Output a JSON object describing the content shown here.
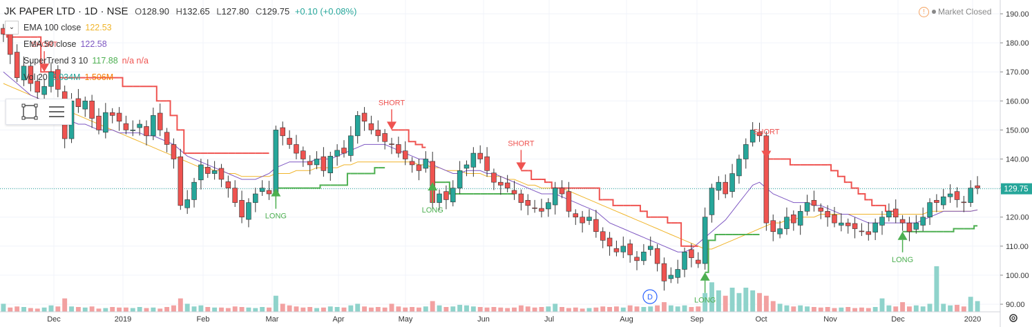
{
  "header": {
    "symbol": "JK PAPER LTD · 1D · NSE",
    "open_label": "O",
    "open": "128.90",
    "high_label": "H",
    "high": "132.65",
    "low_label": "L",
    "low": "127.80",
    "close_label": "C",
    "close": "129.75",
    "change": "+0.10 (+0.08%)"
  },
  "indicators": [
    {
      "label": "EMA 100 close",
      "value": "122.53",
      "color": "#f0b429"
    },
    {
      "label": "EMA 50 close",
      "value": "122.58",
      "color": "#7e57c2"
    },
    {
      "label": "SuperTrend 3 10",
      "value": "117.88",
      "extra": "n/a n/a",
      "color": "#4caf50",
      "extra_color": "#ef5350"
    },
    {
      "label": "Vol 20",
      "value": "2.034M",
      "value2": "1.506M",
      "color": "#26a69a",
      "color2": "#f57c00"
    }
  ],
  "market_status": "Market Closed",
  "icons": {
    "collapse": "chevron-down-icon",
    "rect": "rectangle-tool-icon",
    "lines": "list-icon",
    "warn": "warning-icon",
    "settings": "gear-icon",
    "dividend": "dividend-marker-icon"
  },
  "colors": {
    "up": "#26a69a",
    "down": "#ef5350",
    "vol_up": "#8fd3cb",
    "vol_down": "#f2a1a1",
    "ema100": "#f0b429",
    "ema50": "#7e57c2",
    "st_up": "#4caf50",
    "st_down": "#ef5350",
    "last_price_bg": "#26a69a"
  },
  "chart_data": {
    "type": "candlestick",
    "ylim": [
      90,
      190
    ],
    "y_ticks": [
      "190.00",
      "180.00",
      "170.00",
      "160.00",
      "150.00",
      "140.00",
      "130.00",
      "120.00",
      "110.00",
      "100.00",
      "90.00"
    ],
    "x_ticks": [
      "Dec",
      "2019",
      "Feb",
      "Mar",
      "Apr",
      "May",
      "Jun",
      "Jul",
      "Aug",
      "Sep",
      "Oct",
      "Nov",
      "Dec",
      "2020"
    ],
    "last_price": "129.75",
    "dividend_marker": "D",
    "close": [
      183,
      176,
      168,
      172,
      166,
      163,
      165,
      170,
      164,
      147,
      160,
      158,
      160,
      154,
      150,
      156,
      155,
      153,
      150,
      150,
      152,
      148,
      155,
      150,
      145,
      140,
      124,
      126,
      132,
      138,
      135,
      136,
      133,
      130,
      125,
      120,
      125,
      128,
      130,
      128,
      150,
      148,
      145,
      142,
      140,
      138,
      140,
      136,
      141,
      143,
      142,
      148,
      155,
      153,
      150,
      148,
      146,
      145,
      142,
      140,
      138,
      136,
      140,
      125,
      128,
      126,
      130,
      136,
      138,
      142,
      140,
      136,
      132,
      131,
      130,
      128,
      125,
      124,
      123,
      122,
      125,
      130,
      128,
      122,
      120,
      118,
      120,
      115,
      112,
      110,
      108,
      110,
      107,
      105,
      108,
      110,
      104,
      98,
      100,
      102,
      108,
      106,
      104,
      120,
      130,
      132,
      128,
      135,
      140,
      145,
      150,
      148,
      118,
      115,
      116,
      120,
      118,
      122,
      125,
      124,
      122,
      120,
      118,
      118,
      117,
      116,
      115,
      114,
      118,
      120,
      122,
      120,
      118,
      115,
      118,
      120,
      125,
      125,
      127,
      128,
      126,
      125,
      130,
      130
    ],
    "open_prev_offset": true,
    "ema100": [
      166,
      165,
      164,
      163,
      162,
      161,
      160,
      159,
      158,
      157,
      156,
      155,
      154,
      153,
      152,
      151,
      150,
      149,
      148,
      147,
      146,
      145,
      144,
      143,
      142,
      141,
      140,
      139,
      138,
      137,
      137,
      136,
      136,
      135,
      135,
      134,
      134,
      134,
      134,
      134,
      135,
      135,
      135,
      136,
      136,
      136,
      137,
      137,
      137,
      137,
      138,
      138,
      139,
      139,
      139,
      139,
      139,
      139,
      139,
      139,
      139,
      138,
      138,
      137,
      137,
      136,
      136,
      136,
      135,
      135,
      135,
      134,
      134,
      134,
      133,
      133,
      132,
      131,
      131,
      130,
      130,
      130,
      130,
      129,
      128,
      127,
      126,
      125,
      124,
      123,
      122,
      121,
      120,
      119,
      118,
      117,
      116,
      115,
      114,
      113,
      112,
      111,
      110,
      109,
      109,
      110,
      111,
      112,
      113,
      114,
      115,
      116,
      117,
      118,
      118,
      119,
      119,
      120,
      120,
      120,
      121,
      121,
      121,
      121,
      121,
      121,
      121,
      121,
      121,
      121,
      121,
      121,
      121,
      121,
      121,
      121,
      122,
      122,
      122,
      122,
      122,
      122,
      122,
      122.5
    ],
    "ema50": [
      170,
      168,
      166,
      164,
      162,
      161,
      160,
      158,
      156,
      154,
      153,
      152,
      152,
      151,
      150,
      150,
      150,
      149,
      149,
      149,
      149,
      148,
      148,
      147,
      146,
      145,
      143,
      141,
      140,
      139,
      138,
      137,
      136,
      135,
      134,
      133,
      133,
      133,
      134,
      135,
      137,
      138,
      139,
      139,
      139,
      139,
      140,
      140,
      140,
      141,
      142,
      143,
      144,
      145,
      145,
      145,
      145,
      144,
      143,
      142,
      141,
      140,
      140,
      138,
      137,
      136,
      135,
      135,
      136,
      136,
      136,
      135,
      135,
      134,
      133,
      132,
      131,
      130,
      129,
      128,
      128,
      128,
      127,
      126,
      125,
      124,
      123,
      122,
      120,
      118,
      117,
      116,
      115,
      114,
      113,
      112,
      111,
      110,
      109,
      108,
      108,
      109,
      111,
      113,
      115,
      117,
      119,
      122,
      125,
      128,
      131,
      132,
      130,
      128,
      127,
      126,
      125,
      125,
      125,
      124,
      124,
      123,
      122,
      121,
      121,
      120,
      119,
      118,
      118,
      118,
      118,
      118,
      118,
      118,
      118,
      119,
      120,
      121,
      122,
      122,
      122,
      122,
      122,
      122.5
    ],
    "supertrend": [
      183,
      182,
      182,
      182,
      182,
      182,
      170,
      170,
      168,
      168,
      168,
      168,
      168,
      168,
      168,
      168,
      168,
      168,
      165,
      165,
      165,
      165,
      165,
      160,
      160,
      155,
      150,
      142,
      142,
      142,
      142,
      142,
      142,
      142,
      142,
      142,
      142,
      142,
      142,
      142,
      130,
      130,
      130,
      130,
      130,
      130,
      130,
      131,
      131,
      131,
      131,
      135,
      135,
      135,
      135,
      137,
      137,
      150,
      150,
      150,
      146,
      145,
      144,
      132,
      132,
      132,
      128,
      128,
      128,
      128,
      128,
      128,
      128,
      128,
      128,
      128,
      136,
      136,
      133,
      133,
      132,
      130,
      130,
      130,
      130,
      130,
      130,
      130,
      126,
      126,
      124,
      124,
      124,
      124,
      122,
      120,
      120,
      120,
      118,
      118,
      110,
      110,
      110,
      101,
      112,
      114,
      114,
      114,
      114,
      114,
      114,
      114,
      140,
      140,
      140,
      140,
      138,
      138,
      138,
      138,
      138,
      138,
      136,
      134,
      132,
      130,
      128,
      126,
      124,
      124,
      122,
      122,
      115,
      115,
      115,
      115,
      115,
      115,
      115,
      115,
      116,
      116,
      116,
      117
    ],
    "supertrend_trend": [
      "down",
      "down",
      "down",
      "down",
      "down",
      "down",
      "down",
      "down",
      "down",
      "down",
      "down",
      "down",
      "down",
      "down",
      "down",
      "down",
      "down",
      "down",
      "down",
      "down",
      "down",
      "down",
      "down",
      "down",
      "down",
      "down",
      "down",
      "down",
      "down",
      "down",
      "down",
      "down",
      "down",
      "down",
      "down",
      "down",
      "down",
      "down",
      "down",
      "down",
      "up",
      "up",
      "up",
      "up",
      "up",
      "up",
      "up",
      "up",
      "up",
      "up",
      "up",
      "up",
      "up",
      "up",
      "up",
      "up",
      "up",
      "down",
      "down",
      "down",
      "down",
      "down",
      "down",
      "up",
      "up",
      "up",
      "up",
      "up",
      "up",
      "up",
      "up",
      "up",
      "up",
      "up",
      "up",
      "up",
      "down",
      "down",
      "down",
      "down",
      "down",
      "down",
      "down",
      "down",
      "down",
      "down",
      "down",
      "down",
      "down",
      "down",
      "down",
      "down",
      "down",
      "down",
      "down",
      "down",
      "down",
      "down",
      "down",
      "down",
      "down",
      "down",
      "down",
      "up",
      "up",
      "up",
      "up",
      "up",
      "up",
      "up",
      "up",
      "up",
      "down",
      "down",
      "down",
      "down",
      "down",
      "down",
      "down",
      "down",
      "down",
      "down",
      "down",
      "down",
      "down",
      "down",
      "down",
      "down",
      "down",
      "down",
      "down",
      "down",
      "up",
      "up",
      "up",
      "up",
      "up",
      "up",
      "up",
      "up",
      "up",
      "up",
      "up",
      "up"
    ],
    "signals": [
      {
        "label": "SHORT",
        "index": 6,
        "type": "short"
      },
      {
        "label": "LONG",
        "index": 40,
        "type": "long"
      },
      {
        "label": "SHORT",
        "index": 57,
        "type": "short"
      },
      {
        "label": "LONG",
        "index": 63,
        "type": "long"
      },
      {
        "label": "SHORT",
        "index": 76,
        "type": "short"
      },
      {
        "label": "LONG",
        "index": 103,
        "type": "long"
      },
      {
        "label": "SHORT",
        "index": 112,
        "type": "short"
      },
      {
        "label": "LONG",
        "index": 132,
        "type": "long"
      }
    ],
    "volume": [
      1.5,
      0.8,
      1.0,
      0.9,
      0.7,
      0.6,
      0.8,
      1.2,
      1.0,
      2.5,
      1.0,
      0.9,
      0.8,
      1.0,
      0.6,
      0.7,
      0.9,
      0.8,
      0.8,
      0.7,
      0.9,
      0.7,
      0.8,
      0.6,
      0.9,
      1.2,
      2.5,
      1.5,
      1.0,
      1.2,
      0.9,
      0.8,
      0.8,
      0.7,
      1.0,
      0.9,
      0.8,
      0.7,
      0.9,
      0.8,
      3.0,
      1.5,
      1.2,
      1.0,
      0.8,
      0.9,
      0.7,
      0.8,
      1.0,
      0.9,
      0.8,
      1.2,
      1.5,
      1.0,
      0.8,
      0.9,
      0.8,
      1.5,
      1.0,
      0.8,
      0.9,
      0.8,
      1.0,
      2.0,
      1.2,
      0.9,
      1.0,
      1.3,
      1.2,
      1.0,
      0.9,
      0.8,
      0.9,
      0.8,
      0.7,
      0.8,
      1.2,
      1.0,
      0.8,
      0.9,
      1.0,
      1.5,
      0.9,
      0.7,
      0.8,
      0.6,
      0.7,
      0.8,
      1.0,
      0.9,
      1.0,
      0.8,
      1.2,
      1.0,
      0.9,
      1.0,
      1.2,
      1.8,
      1.2,
      1.0,
      1.2,
      0.9,
      1.0,
      3.5,
      5.5,
      4.0,
      3.0,
      4.5,
      3.5,
      4.5,
      4.0,
      3.5,
      3.0,
      2.0,
      1.5,
      1.2,
      1.0,
      1.2,
      1.0,
      0.9,
      0.8,
      0.9,
      0.7,
      0.8,
      0.9,
      0.7,
      0.8,
      0.7,
      0.9,
      2.5,
      1.2,
      1.0,
      1.8,
      1.0,
      1.2,
      1.0,
      1.5,
      8.5,
      1.5,
      1.2,
      1.3,
      1.0,
      2.8,
      2.0
    ],
    "vol_max": 9
  }
}
